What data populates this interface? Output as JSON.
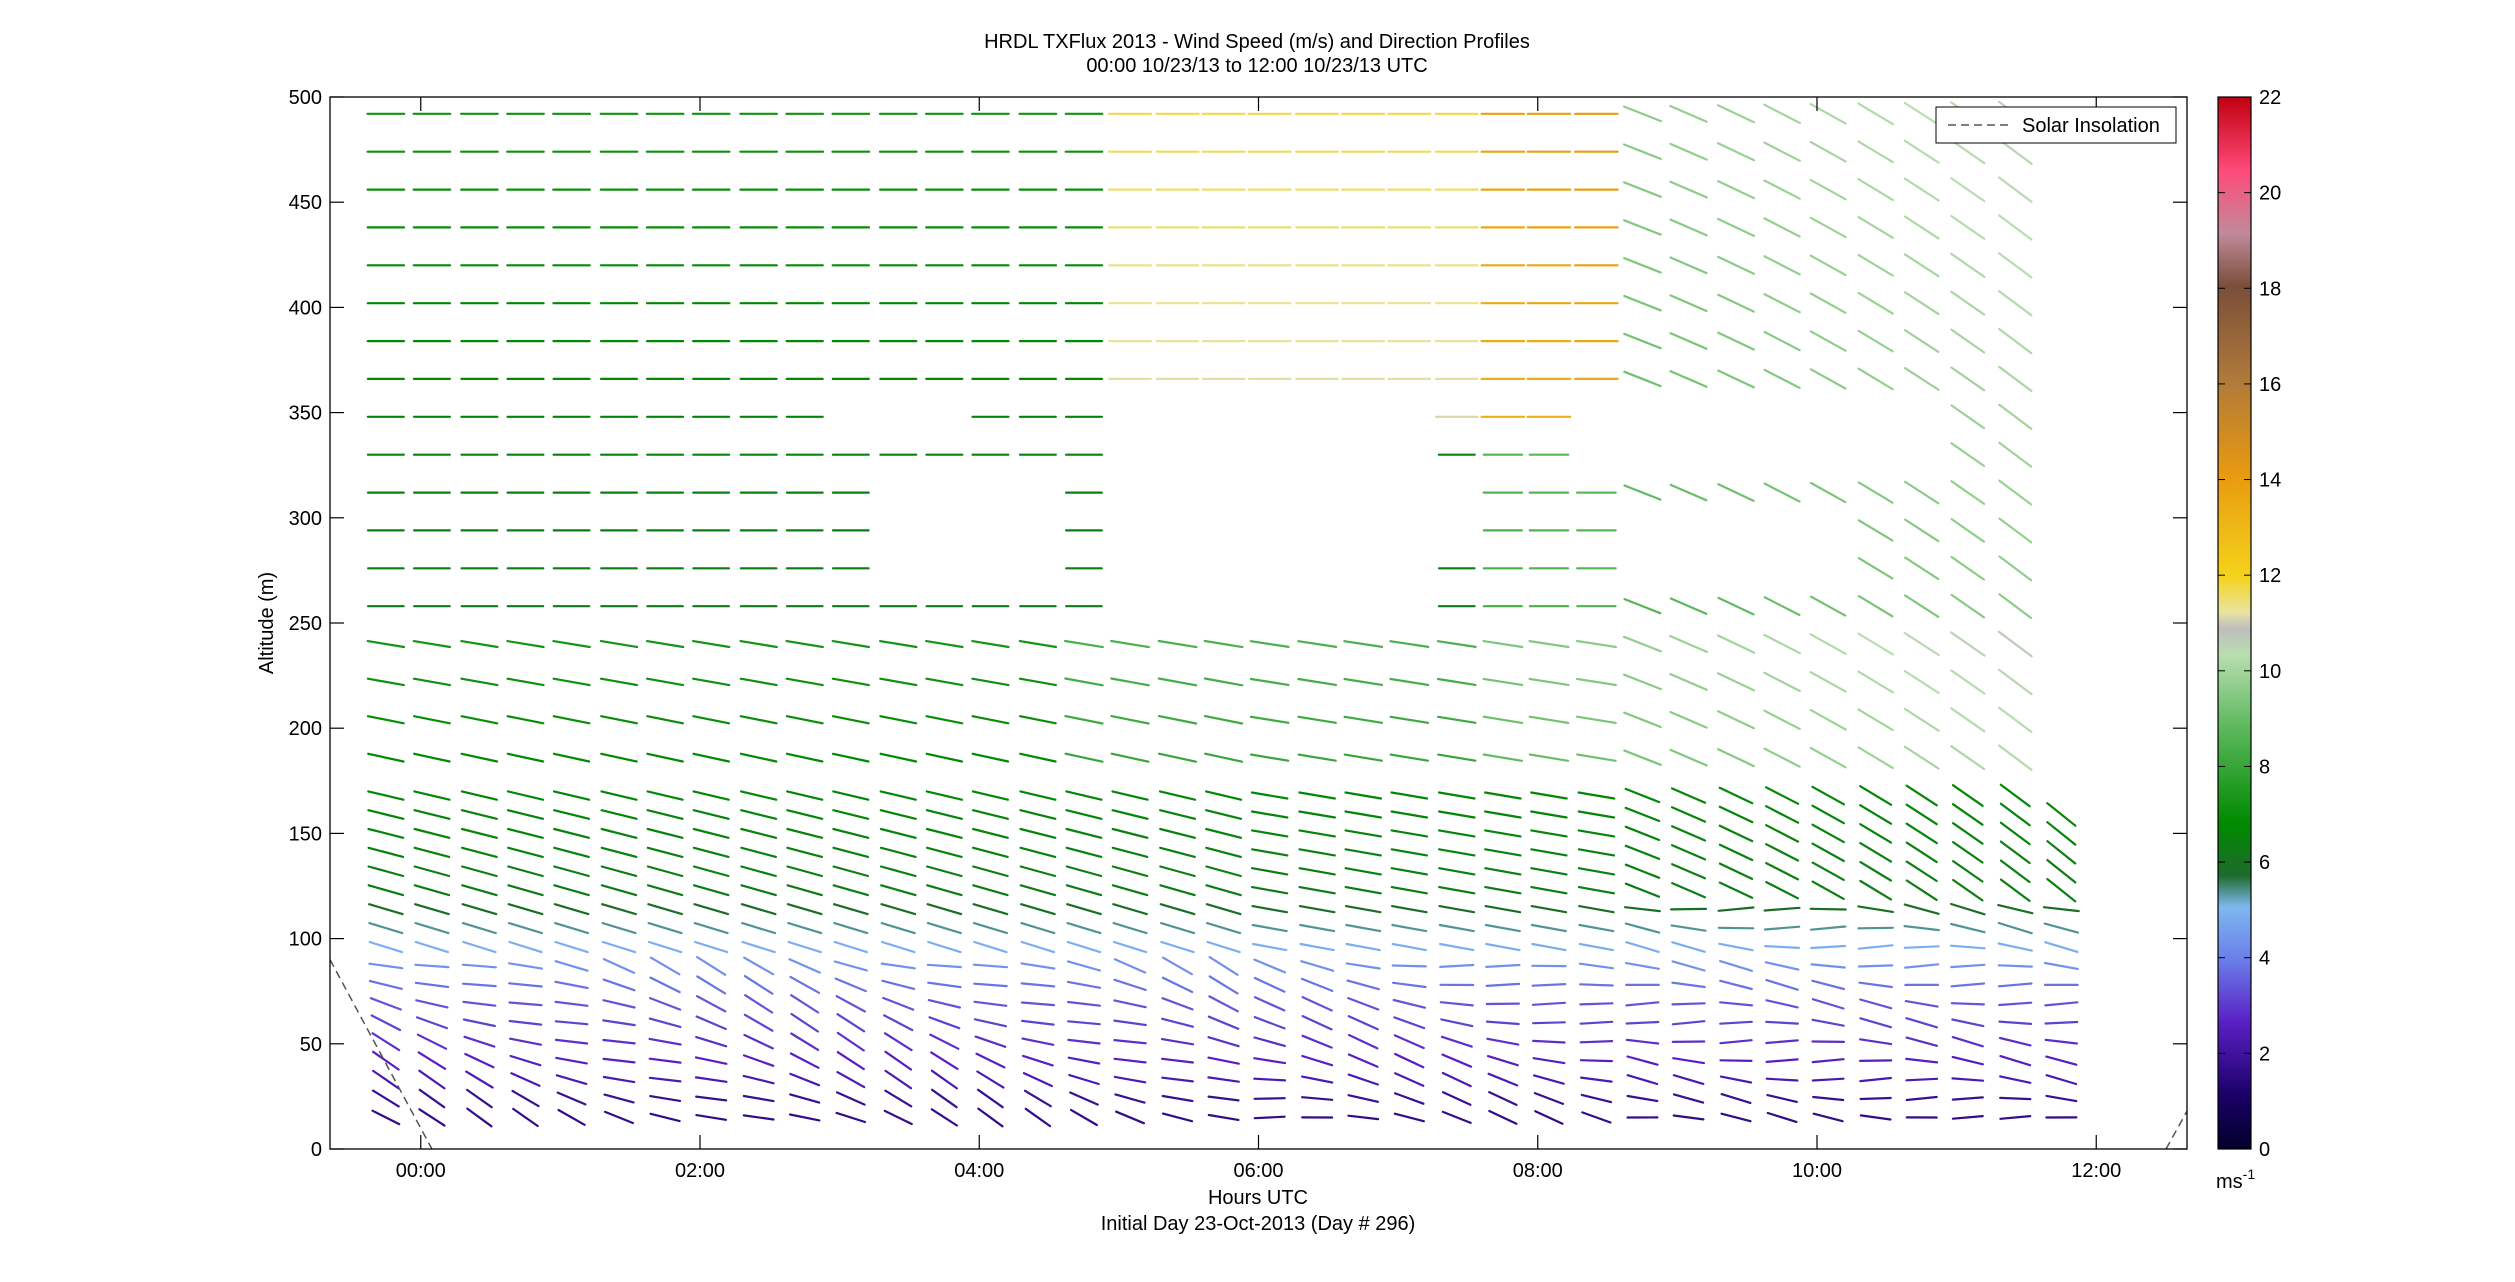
{
  "chart_data": {
    "type": "wind_barb_profile",
    "title_line1": "HRDL TXFlux 2013 - Wind Speed (m/s) and Direction Profiles",
    "title_line2": "00:00 10/23/13 to 12:00 10/23/13  UTC",
    "xlabel": "Hours UTC",
    "xlabel2": "Initial Day 23-Oct-2013 (Day # 296)",
    "ylabel": "Altitude (m)",
    "xlim_hours": [
      -0.65,
      12.65
    ],
    "ylim": [
      0,
      500
    ],
    "x_ticks": [
      0,
      2,
      4,
      6,
      8,
      10,
      12
    ],
    "x_tick_labels": [
      "00:00",
      "02:00",
      "04:00",
      "06:00",
      "08:00",
      "10:00",
      "12:00"
    ],
    "y_ticks": [
      0,
      50,
      100,
      150,
      200,
      250,
      300,
      350,
      400,
      450,
      500
    ],
    "y_tick_labels": [
      "0",
      "50",
      "100",
      "150",
      "200",
      "250",
      "300",
      "350",
      "400",
      "450",
      "500"
    ],
    "colorbar": {
      "min": 0,
      "max": 22,
      "ticks": [
        0,
        2,
        4,
        6,
        8,
        10,
        12,
        14,
        16,
        18,
        20,
        22
      ],
      "tick_labels": [
        "0",
        "2",
        "4",
        "6",
        "8",
        "10",
        "12",
        "14",
        "16",
        "18",
        "20",
        "22"
      ],
      "unit_base": "ms",
      "unit_exp": "-1"
    },
    "legend": {
      "entries": [
        "Solar Insolation"
      ],
      "position": "top-right",
      "line_style": "dashed"
    },
    "grid": false,
    "profile_times_hours": [
      -0.25,
      0.08,
      0.42,
      0.75,
      1.08,
      1.42,
      1.75,
      2.08,
      2.42,
      2.75,
      3.08,
      3.42,
      3.75,
      4.08,
      4.42,
      4.75,
      5.08,
      5.42,
      5.75,
      6.08,
      6.42,
      6.75,
      7.08,
      7.42,
      7.75,
      8.08,
      8.42,
      8.75,
      9.08,
      9.42,
      9.75,
      10.08,
      10.42,
      10.75,
      11.08,
      11.42,
      11.75
    ],
    "altitude_levels_m": [
      15,
      24,
      33,
      42,
      51,
      60,
      69,
      78,
      87,
      96,
      105,
      114,
      123,
      132,
      141,
      150,
      159,
      168,
      186,
      204,
      222,
      240,
      258,
      276,
      294,
      312,
      330,
      348,
      366,
      384,
      402,
      420,
      438,
      456,
      474,
      492
    ],
    "solar_insolation_segments": [
      [
        [
          -0.65,
          90
        ],
        [
          0.08,
          0
        ]
      ],
      [
        [
          12.5,
          0
        ],
        [
          12.65,
          18
        ]
      ]
    ],
    "wind_speed_note": "colour = wind speed (m/s); line orientation = wind direction"
  }
}
